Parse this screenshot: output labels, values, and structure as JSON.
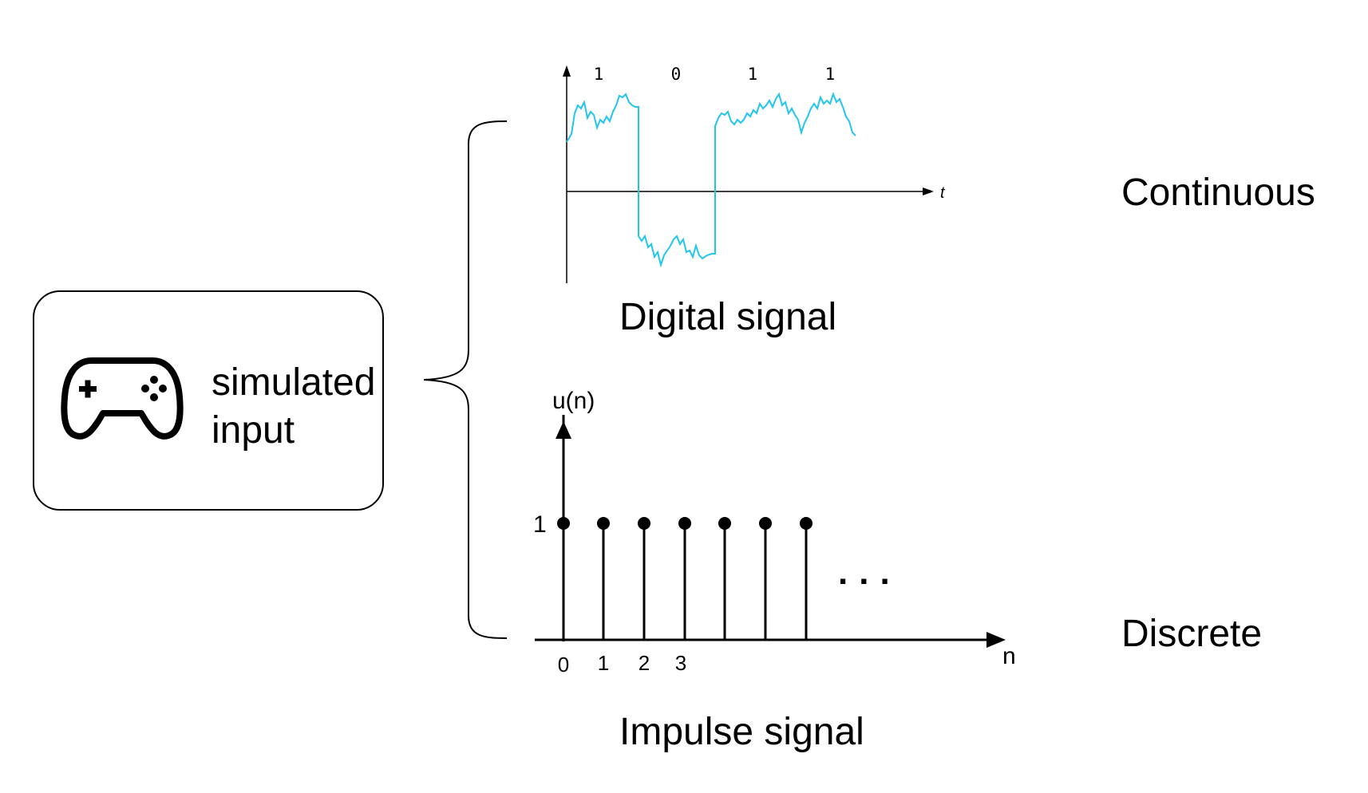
{
  "input": {
    "line1": "simulated",
    "line2": "input",
    "icon": "gamepad-icon"
  },
  "digital": {
    "caption": "Digital signal",
    "bits": [
      "1",
      "0",
      "1",
      "1"
    ],
    "axis_label": "t",
    "color": "#22c5ee"
  },
  "impulse": {
    "caption": "Impulse signal",
    "y_label": "u(n)",
    "x_label": "n",
    "y_tick": "1",
    "x_ticks": [
      "0",
      "1",
      "2",
      "3"
    ],
    "ellipsis": "..."
  },
  "labels": {
    "continuous": "Continuous",
    "discrete": "Discrete"
  }
}
